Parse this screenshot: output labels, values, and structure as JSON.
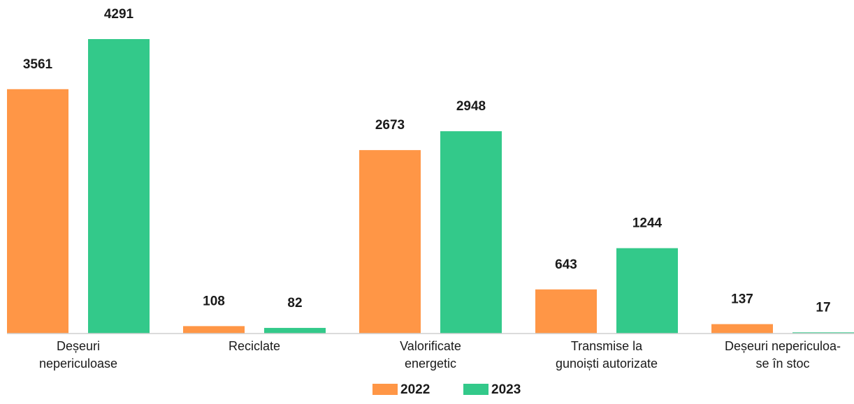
{
  "chart_data": {
    "type": "bar",
    "categories": [
      [
        "Deșeuri",
        "nepericuloase"
      ],
      [
        "Reciclate"
      ],
      [
        "Valorificate",
        "energetic"
      ],
      [
        "Transmise la",
        "gunoiști autorizate"
      ],
      [
        "Deșeuri nepericuloa-",
        "se în stoc"
      ]
    ],
    "series": [
      {
        "name": "2022",
        "color": "#FF9646",
        "values": [
          3561,
          108,
          2673,
          643,
          137
        ]
      },
      {
        "name": "2023",
        "color": "#33C98A",
        "values": [
          4291,
          82,
          2948,
          1244,
          17
        ]
      }
    ],
    "ylim": [
      0,
      4291
    ],
    "grid": false,
    "data_labels": true,
    "legend_position": "bottom-center"
  }
}
